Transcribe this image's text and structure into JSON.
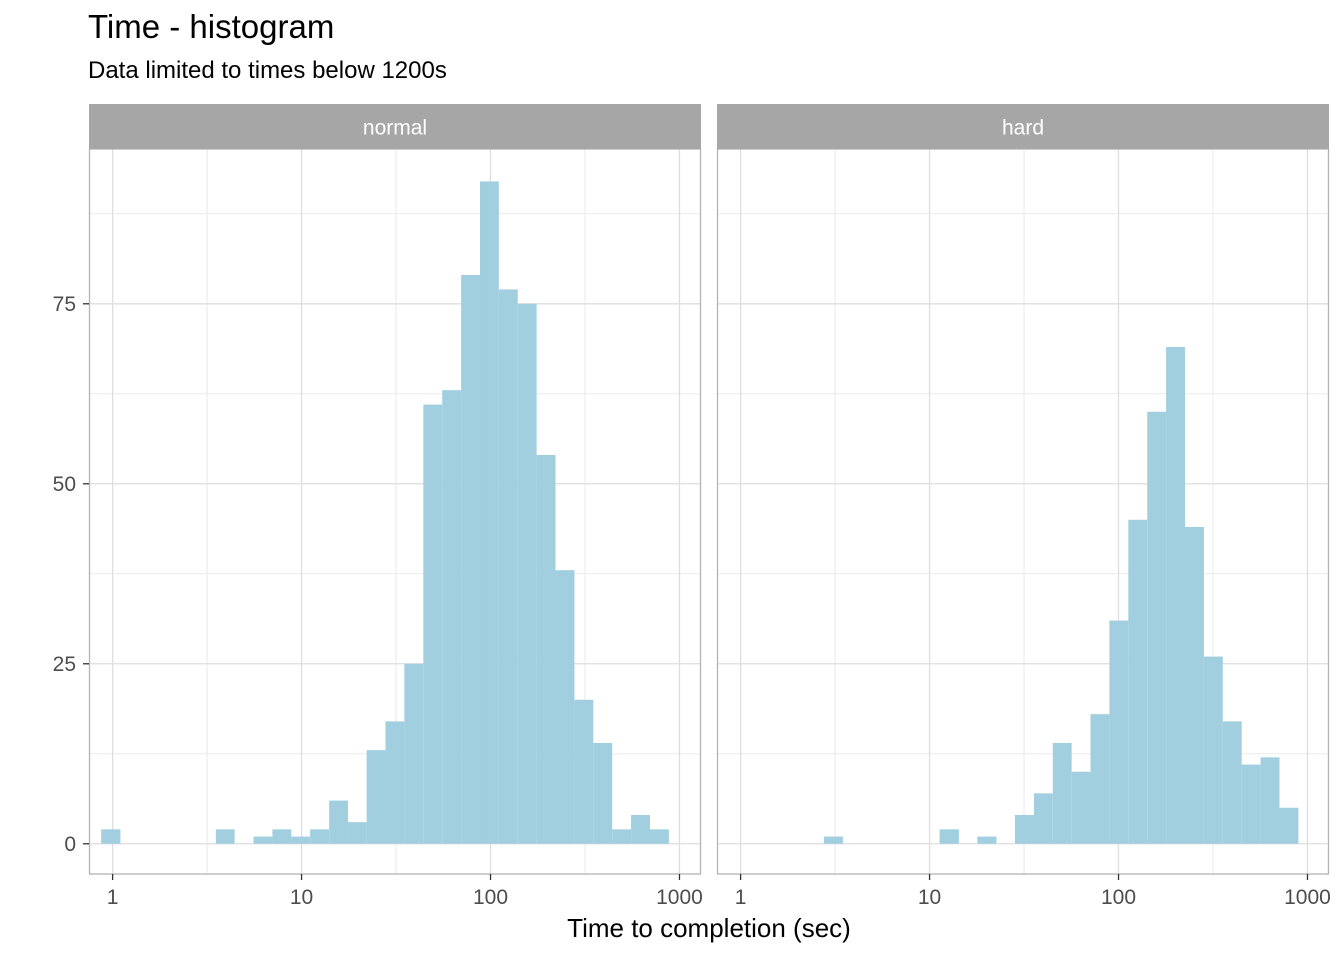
{
  "chart_data": {
    "type": "bar",
    "title": "Time - histogram",
    "subtitle": "Data limited to times below 1200s",
    "xlabel": "Time to completion (sec)",
    "ylabel": "",
    "x_scale": "log10",
    "xlim": [
      0.75,
      1300
    ],
    "ylim": [
      -4.2,
      96.5
    ],
    "x_ticks": [
      1,
      10,
      100,
      1000
    ],
    "x_tick_labels": [
      "1",
      "10",
      "100",
      "1000"
    ],
    "y_ticks": [
      0,
      25,
      50,
      75
    ],
    "y_tick_labels": [
      "0",
      "25",
      "50",
      "75"
    ],
    "bar_color": "#a1cfe0",
    "grid": true,
    "strip_color": "#a6a6a6",
    "panels": [
      {
        "name": "normal",
        "bins": [
          {
            "x0": 0.87,
            "x1": 1.1,
            "count": 2
          },
          {
            "x0": 3.52,
            "x1": 4.42,
            "count": 2
          },
          {
            "x0": 5.57,
            "x1": 7.01,
            "count": 1
          },
          {
            "x0": 7.01,
            "x1": 8.82,
            "count": 2
          },
          {
            "x0": 8.82,
            "x1": 11.1,
            "count": 1
          },
          {
            "x0": 11.1,
            "x1": 14.0,
            "count": 2
          },
          {
            "x0": 14.0,
            "x1": 17.6,
            "count": 6
          },
          {
            "x0": 17.6,
            "x1": 22.1,
            "count": 3
          },
          {
            "x0": 22.1,
            "x1": 27.8,
            "count": 13
          },
          {
            "x0": 27.8,
            "x1": 35.0,
            "count": 17
          },
          {
            "x0": 35.0,
            "x1": 44.1,
            "count": 25
          },
          {
            "x0": 44.1,
            "x1": 55.5,
            "count": 61
          },
          {
            "x0": 55.5,
            "x1": 69.9,
            "count": 63
          },
          {
            "x0": 69.9,
            "x1": 88.0,
            "count": 79
          },
          {
            "x0": 88.0,
            "x1": 110.7,
            "count": 92
          },
          {
            "x0": 110.7,
            "x1": 139.4,
            "count": 77
          },
          {
            "x0": 139.4,
            "x1": 175.4,
            "count": 75
          },
          {
            "x0": 175.4,
            "x1": 220.8,
            "count": 54
          },
          {
            "x0": 220.8,
            "x1": 278.0,
            "count": 38
          },
          {
            "x0": 278.0,
            "x1": 349.9,
            "count": 20
          },
          {
            "x0": 349.9,
            "x1": 440.5,
            "count": 14
          },
          {
            "x0": 440.5,
            "x1": 554.5,
            "count": 2
          },
          {
            "x0": 554.5,
            "x1": 698.0,
            "count": 4
          },
          {
            "x0": 698.0,
            "x1": 878.7,
            "count": 2
          }
        ]
      },
      {
        "name": "hard",
        "bins": [
          {
            "x0": 2.76,
            "x1": 3.48,
            "count": 1
          },
          {
            "x0": 11.3,
            "x1": 14.3,
            "count": 2
          },
          {
            "x0": 17.9,
            "x1": 22.6,
            "count": 1
          },
          {
            "x0": 28.3,
            "x1": 35.7,
            "count": 4
          },
          {
            "x0": 35.7,
            "x1": 44.9,
            "count": 7
          },
          {
            "x0": 44.9,
            "x1": 56.5,
            "count": 14
          },
          {
            "x0": 56.5,
            "x1": 71.1,
            "count": 10
          },
          {
            "x0": 71.1,
            "x1": 89.5,
            "count": 18
          },
          {
            "x0": 89.5,
            "x1": 112.7,
            "count": 31
          },
          {
            "x0": 112.7,
            "x1": 141.9,
            "count": 45
          },
          {
            "x0": 141.9,
            "x1": 178.6,
            "count": 60
          },
          {
            "x0": 178.6,
            "x1": 224.8,
            "count": 69
          },
          {
            "x0": 224.8,
            "x1": 283.1,
            "count": 44
          },
          {
            "x0": 283.1,
            "x1": 356.4,
            "count": 26
          },
          {
            "x0": 356.4,
            "x1": 448.6,
            "count": 17
          },
          {
            "x0": 448.6,
            "x1": 564.8,
            "count": 11
          },
          {
            "x0": 564.8,
            "x1": 711.1,
            "count": 12
          },
          {
            "x0": 711.1,
            "x1": 895.2,
            "count": 5
          }
        ]
      }
    ]
  }
}
